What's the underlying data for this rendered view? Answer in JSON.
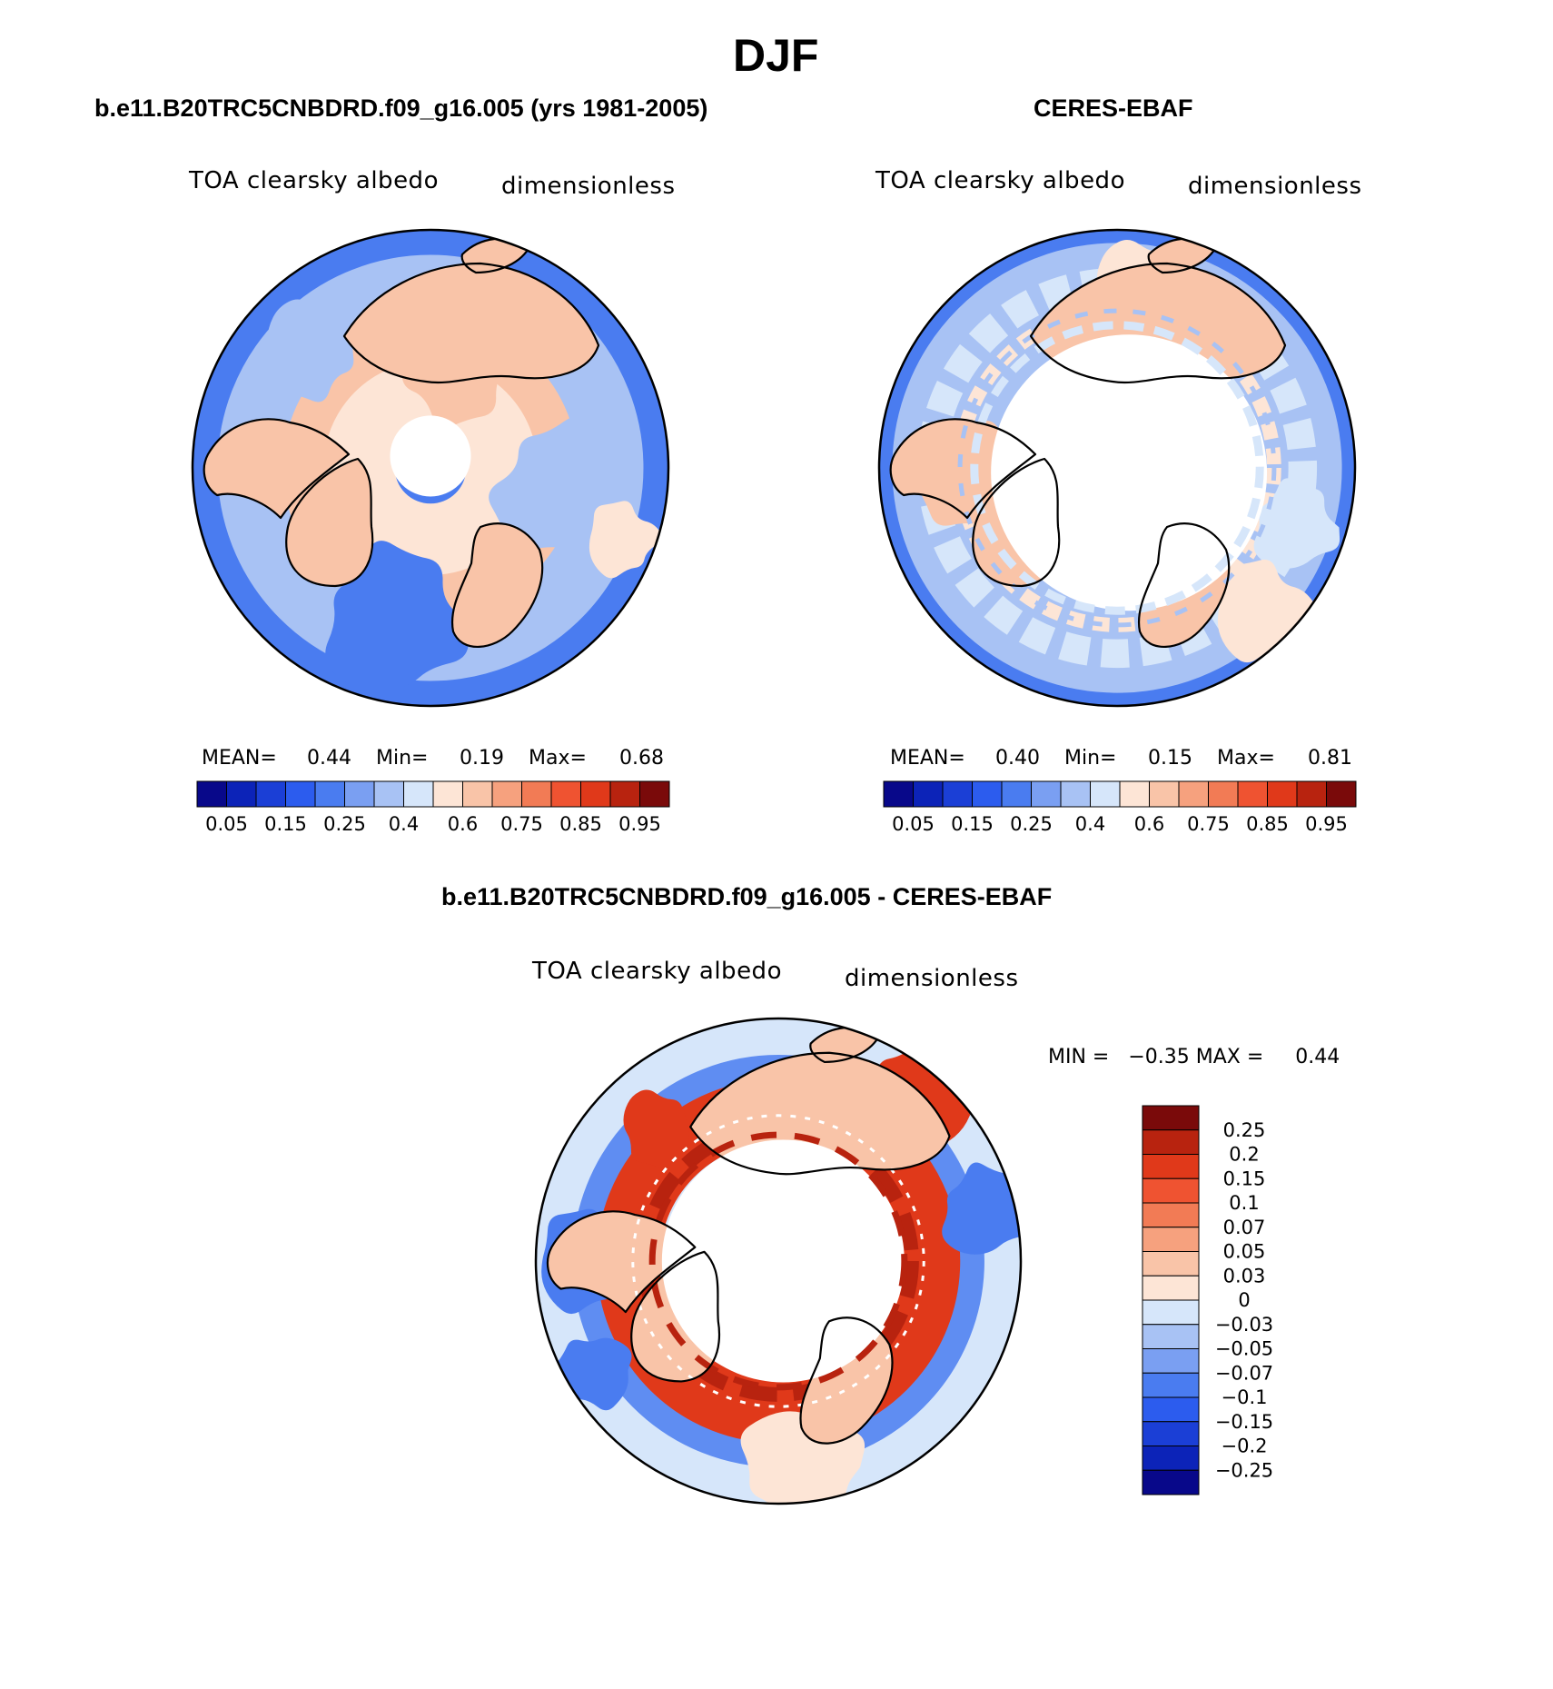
{
  "title": "DJF",
  "panels": [
    {
      "title": "b.e11.B20TRC5CNBDRD.f09_g16.005 (yrs 1981-2005)",
      "variable": "TOA clearsky albedo",
      "units": "dimensionless",
      "stats": {
        "mean_label": "MEAN=",
        "mean": "0.44",
        "min_label": "Min=",
        "min": "0.19",
        "max_label": "Max=",
        "max": "0.68"
      }
    },
    {
      "title": "CERES-EBAF",
      "variable": "TOA clearsky albedo",
      "units": "dimensionless",
      "stats": {
        "mean_label": "MEAN=",
        "mean": "0.40",
        "min_label": "Min=",
        "min": "0.15",
        "max_label": "Max=",
        "max": "0.81"
      }
    }
  ],
  "difference": {
    "title": "b.e11.B20TRC5CNBDRD.f09_g16.005 - CERES-EBAF",
    "variable": "TOA clearsky albedo",
    "units": "dimensionless",
    "stats_text": "MIN =   −0.35 MAX =     0.44"
  },
  "colorbar_main": {
    "colors": [
      "#08088a",
      "#0c23b8",
      "#1b3fd6",
      "#2c5cee",
      "#4a7cf0",
      "#7a9ff2",
      "#a8c2f4",
      "#d6e6fa",
      "#fde5d6",
      "#f9c4a8",
      "#f6a17e",
      "#f27b55",
      "#ef5331",
      "#e0391a",
      "#b8230f",
      "#7a0a0a"
    ],
    "labels": [
      "0.05",
      "0.15",
      "0.25",
      "0.4",
      "0.6",
      "0.75",
      "0.85",
      "0.95"
    ]
  },
  "colorbar_diff": {
    "colors": [
      "#7a0a0a",
      "#b8230f",
      "#e0391a",
      "#ef5331",
      "#f27b55",
      "#f6a17e",
      "#f9c4a8",
      "#fde5d6",
      "#d6e6fa",
      "#a8c2f4",
      "#7a9ff2",
      "#4a7cf0",
      "#2c5cee",
      "#1b3fd6",
      "#0c23b8",
      "#08088a"
    ],
    "labels": [
      "0.25",
      "0.2",
      "0.15",
      "0.1",
      "0.07",
      "0.05",
      "0.03",
      "0",
      "−0.03",
      "−0.05",
      "−0.07",
      "−0.1",
      "−0.15",
      "−0.2",
      "−0.25"
    ]
  },
  "map_colors": {
    "ocean_blue": "#4a7cf0",
    "light_blue": "#a8c2f4",
    "pale_blue": "#d6e6fa",
    "land_peach": "#f9c4a8",
    "pale_peach": "#fde5d6",
    "diff_red": "#e0391a",
    "diff_dark_red": "#b8230f",
    "no_data": "#ffffff",
    "coastline": "#000000"
  }
}
